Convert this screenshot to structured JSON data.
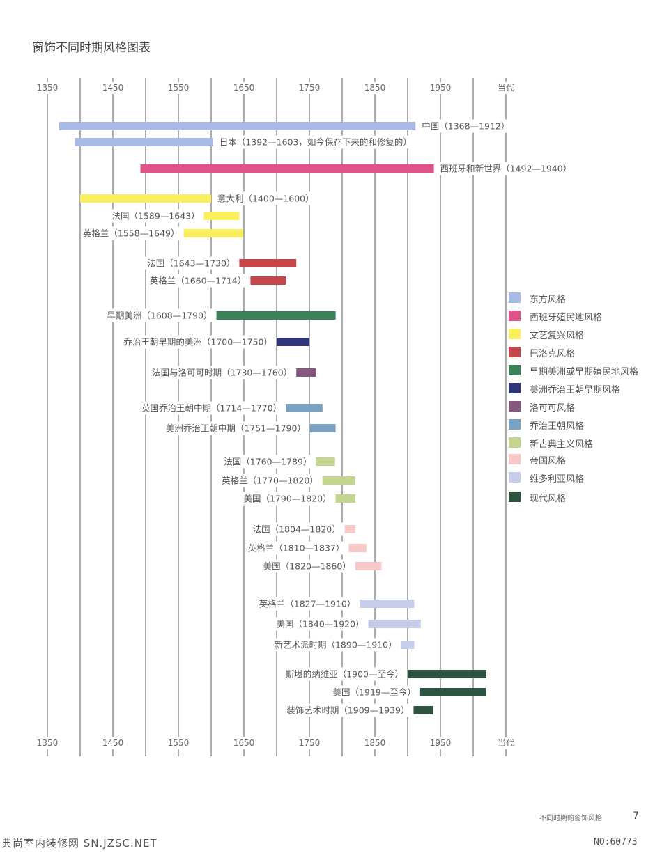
{
  "page": {
    "title": "窗饰不同时期风格图表",
    "footer_caption": "不同时期的窗饰风格",
    "page_number": "7",
    "watermark_left": "典尚室内装修网 SN.JZSC.NET",
    "watermark_right": "NO:60773"
  },
  "chart_data": {
    "type": "timeline-bar",
    "title": "窗饰不同时期风格图表",
    "axis": {
      "ticks": [
        "1350",
        "1450",
        "1550",
        "1650",
        "1750",
        "1850",
        "1950",
        "当代"
      ],
      "range": [
        1350,
        2050
      ]
    },
    "rows": [
      {
        "label": "中国（1368—1912）",
        "start": 1368,
        "end": 1912,
        "style": "东方风格",
        "color": "#a9b9e6"
      },
      {
        "label": "日本（1392—1603，如今保存下来的和修复的）",
        "start": 1392,
        "end": 1603,
        "style": "东方风格",
        "color": "#a9b9e6"
      },
      {
        "label": "西班牙和新世界（1492—1940）",
        "start": 1492,
        "end": 1940,
        "style": "西班牙殖民地风格",
        "color": "#e2528a"
      },
      {
        "label": "意大利（1400—1600）",
        "start": 1400,
        "end": 1600,
        "style": "文艺复兴风格",
        "color": "#f9ef5e"
      },
      {
        "label": "法国（1589—1643）",
        "start": 1589,
        "end": 1643,
        "style": "文艺复兴风格",
        "color": "#f9ef5e"
      },
      {
        "label": "英格兰（1558—1649）",
        "start": 1558,
        "end": 1649,
        "style": "文艺复兴风格",
        "color": "#f9ef5e"
      },
      {
        "label": "法国（1643—1730）",
        "start": 1643,
        "end": 1730,
        "style": "巴洛克风格",
        "color": "#c4454a"
      },
      {
        "label": "英格兰（1660—1714）",
        "start": 1660,
        "end": 1714,
        "style": "巴洛克风格",
        "color": "#c4454a"
      },
      {
        "label": "早期美洲（1608—1790）",
        "start": 1608,
        "end": 1790,
        "style": "早期美洲或早期殖民地风格",
        "color": "#3b8157"
      },
      {
        "label": "乔治王朝早期的美洲（1700—1750）",
        "start": 1700,
        "end": 1750,
        "style": "美洲乔治王朝早期风格",
        "color": "#2f3579"
      },
      {
        "label": "法国与洛可可时期（1730—1760）",
        "start": 1730,
        "end": 1760,
        "style": "洛可可风格",
        "color": "#85577f"
      },
      {
        "label": "英国乔治王朝中期（1714—1770）",
        "start": 1714,
        "end": 1770,
        "style": "乔治王朝风格",
        "color": "#7ba2c0"
      },
      {
        "label": "美洲乔治王朝中期（1751—1790）",
        "start": 1751,
        "end": 1790,
        "style": "乔治王朝风格",
        "color": "#7ba2c0"
      },
      {
        "label": "法国（1760—1789）",
        "start": 1760,
        "end": 1789,
        "style": "新古典主义风格",
        "color": "#c2d48e"
      },
      {
        "label": "英格兰（1770—1820）",
        "start": 1770,
        "end": 1820,
        "style": "新古典主义风格",
        "color": "#c2d48e"
      },
      {
        "label": "美国（1790—1820）",
        "start": 1790,
        "end": 1820,
        "style": "新古典主义风格",
        "color": "#c2d48e"
      },
      {
        "label": "法国（1804—1820）",
        "start": 1804,
        "end": 1820,
        "style": "帝国风格",
        "color": "#f8c8c8"
      },
      {
        "label": "英格兰（1810—1837）",
        "start": 1810,
        "end": 1837,
        "style": "帝国风格",
        "color": "#f8c8c8"
      },
      {
        "label": "美国（1820—1860）",
        "start": 1820,
        "end": 1860,
        "style": "帝国风格",
        "color": "#f8c8c8"
      },
      {
        "label": "英格兰（1827—1910）",
        "start": 1827,
        "end": 1910,
        "style": "维多利亚风格",
        "color": "#c5cdeb"
      },
      {
        "label": "美国（1840—1920）",
        "start": 1840,
        "end": 1920,
        "style": "维多利亚风格",
        "color": "#c5cdeb"
      },
      {
        "label": "新艺术派时期（1890—1910）",
        "start": 1890,
        "end": 1910,
        "style": "维多利亚风格",
        "color": "#c5cdeb"
      },
      {
        "label": "斯堪的纳维亚（1900—至今）",
        "start": 1900,
        "end": 2020,
        "style": "现代风格",
        "color": "#2d5440"
      },
      {
        "label": "美国（1919—至今）",
        "start": 1919,
        "end": 2020,
        "style": "现代风格",
        "color": "#2d5440"
      },
      {
        "label": "装饰艺术时期（1909—1939）",
        "start": 1909,
        "end": 1939,
        "style": "现代风格",
        "color": "#2d5440"
      }
    ],
    "legend": [
      {
        "label": "东方风格",
        "color": "#a9b9e6"
      },
      {
        "label": "西班牙殖民地风格",
        "color": "#e2528a"
      },
      {
        "label": "文艺复兴风格",
        "color": "#f9ef5e"
      },
      {
        "label": "巴洛克风格",
        "color": "#c4454a"
      },
      {
        "label": "早期美洲或早期殖民地风格",
        "color": "#3b8157"
      },
      {
        "label": "美洲乔治王朝早期风格",
        "color": "#2f3579"
      },
      {
        "label": "洛可可风格",
        "color": "#85577f"
      },
      {
        "label": "乔治王朝风格",
        "color": "#7ba2c0"
      },
      {
        "label": "新古典主义风格",
        "color": "#c2d48e"
      },
      {
        "label": "帝国风格",
        "color": "#f8c8c8"
      },
      {
        "label": "维多利亚风格",
        "color": "#c5cdeb"
      },
      {
        "label": "现代风格",
        "color": "#2d5440"
      }
    ]
  }
}
